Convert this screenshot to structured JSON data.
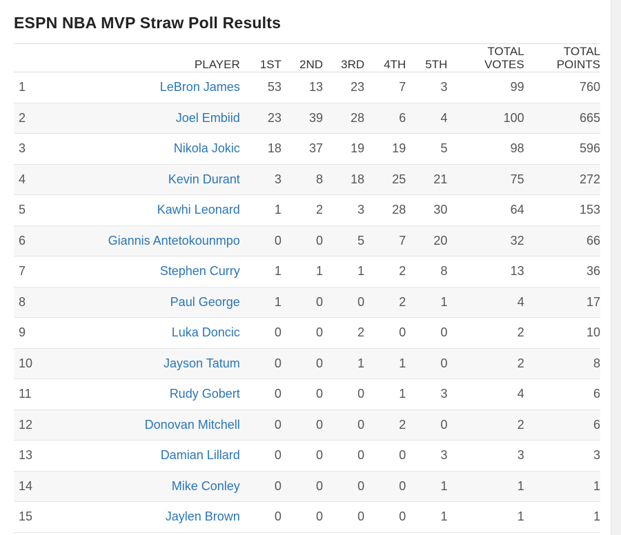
{
  "title": "ESPN NBA MVP Straw Poll Results",
  "columns": {
    "player": "PLAYER",
    "first": "1ST",
    "second": "2ND",
    "third": "3RD",
    "fourth": "4TH",
    "fifth": "5TH",
    "total_votes_1": "TOTAL",
    "total_votes_2": "VOTES",
    "total_points_1": "TOTAL",
    "total_points_2": "POINTS"
  },
  "rows": [
    {
      "rank": "1",
      "player": "LeBron James",
      "first": "53",
      "second": "13",
      "third": "23",
      "fourth": "7",
      "fifth": "3",
      "total_votes": "99",
      "total_points": "760"
    },
    {
      "rank": "2",
      "player": "Joel Embiid",
      "first": "23",
      "second": "39",
      "third": "28",
      "fourth": "6",
      "fifth": "4",
      "total_votes": "100",
      "total_points": "665"
    },
    {
      "rank": "3",
      "player": "Nikola Jokic",
      "first": "18",
      "second": "37",
      "third": "19",
      "fourth": "19",
      "fifth": "5",
      "total_votes": "98",
      "total_points": "596"
    },
    {
      "rank": "4",
      "player": "Kevin Durant",
      "first": "3",
      "second": "8",
      "third": "18",
      "fourth": "25",
      "fifth": "21",
      "total_votes": "75",
      "total_points": "272"
    },
    {
      "rank": "5",
      "player": "Kawhi Leonard",
      "first": "1",
      "second": "2",
      "third": "3",
      "fourth": "28",
      "fifth": "30",
      "total_votes": "64",
      "total_points": "153"
    },
    {
      "rank": "6",
      "player": "Giannis Antetokounmpo",
      "first": "0",
      "second": "0",
      "third": "5",
      "fourth": "7",
      "fifth": "20",
      "total_votes": "32",
      "total_points": "66"
    },
    {
      "rank": "7",
      "player": "Stephen Curry",
      "first": "1",
      "second": "1",
      "third": "1",
      "fourth": "2",
      "fifth": "8",
      "total_votes": "13",
      "total_points": "36"
    },
    {
      "rank": "8",
      "player": "Paul George",
      "first": "1",
      "second": "0",
      "third": "0",
      "fourth": "2",
      "fifth": "1",
      "total_votes": "4",
      "total_points": "17"
    },
    {
      "rank": "9",
      "player": "Luka Doncic",
      "first": "0",
      "second": "0",
      "third": "2",
      "fourth": "0",
      "fifth": "0",
      "total_votes": "2",
      "total_points": "10"
    },
    {
      "rank": "10",
      "player": "Jayson Tatum",
      "first": "0",
      "second": "0",
      "third": "1",
      "fourth": "1",
      "fifth": "0",
      "total_votes": "2",
      "total_points": "8"
    },
    {
      "rank": "11",
      "player": "Rudy Gobert",
      "first": "0",
      "second": "0",
      "third": "0",
      "fourth": "1",
      "fifth": "3",
      "total_votes": "4",
      "total_points": "6"
    },
    {
      "rank": "12",
      "player": "Donovan Mitchell",
      "first": "0",
      "second": "0",
      "third": "0",
      "fourth": "2",
      "fifth": "0",
      "total_votes": "2",
      "total_points": "6"
    },
    {
      "rank": "13",
      "player": "Damian Lillard",
      "first": "0",
      "second": "0",
      "third": "0",
      "fourth": "0",
      "fifth": "3",
      "total_votes": "3",
      "total_points": "3"
    },
    {
      "rank": "14",
      "player": "Mike Conley",
      "first": "0",
      "second": "0",
      "third": "0",
      "fourth": "0",
      "fifth": "1",
      "total_votes": "1",
      "total_points": "1"
    },
    {
      "rank": "15",
      "player": "Jaylen Brown",
      "first": "0",
      "second": "0",
      "third": "0",
      "fourth": "0",
      "fifth": "1",
      "total_votes": "1",
      "total_points": "1"
    }
  ]
}
